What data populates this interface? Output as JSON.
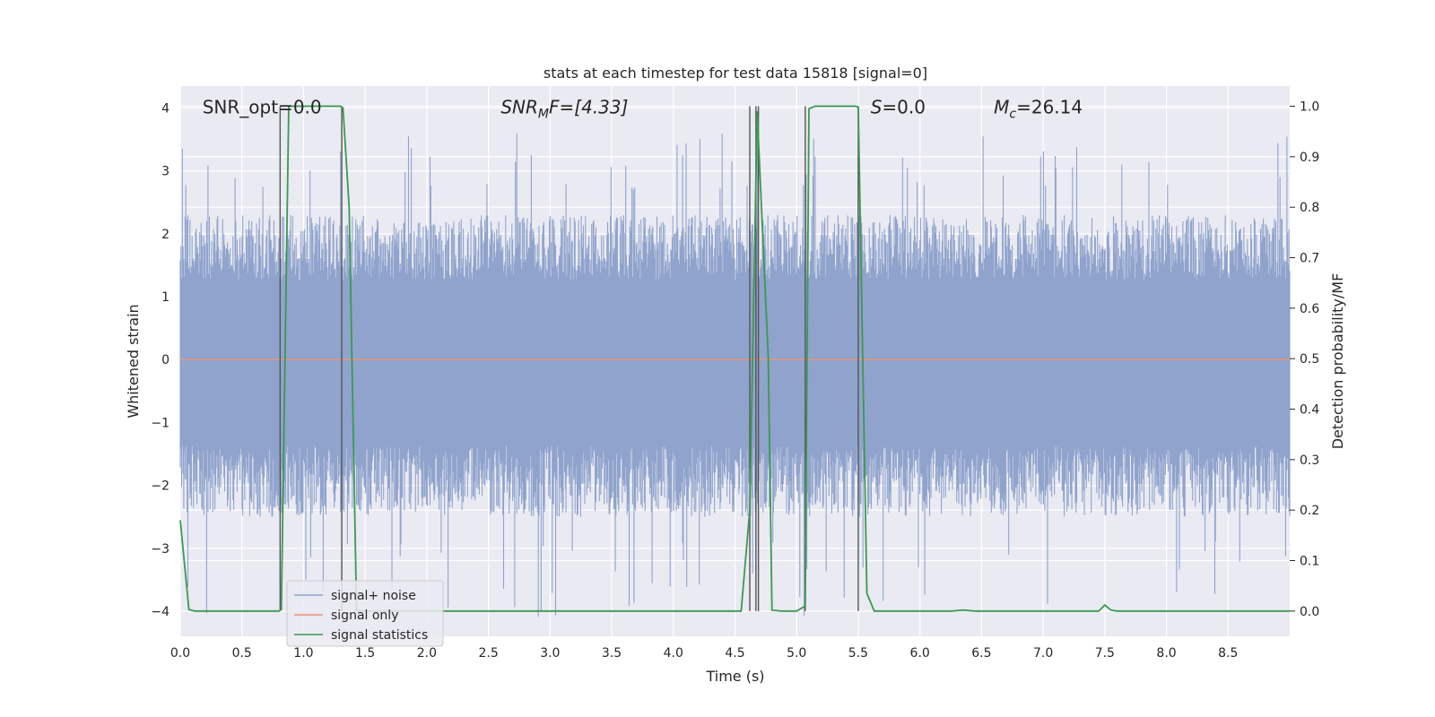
{
  "chart_data": {
    "type": "line",
    "title": "stats at each timestep for test data 15818 [signal=0]",
    "xlabel": "Time (s)",
    "ylabel": "Whitened strain",
    "y2label": "Detection probability/MF",
    "xlim": [
      0.0,
      9.0
    ],
    "ylim": [
      -4.4,
      4.35
    ],
    "y2lim": [
      -0.05,
      1.04
    ],
    "x_ticks": [
      0.0,
      0.5,
      1.0,
      1.5,
      2.0,
      2.5,
      3.0,
      3.5,
      4.0,
      4.5,
      5.0,
      5.5,
      6.0,
      6.5,
      7.0,
      7.5,
      8.0,
      8.5
    ],
    "x_tick_labels": [
      "0.0",
      "0.5",
      "1.0",
      "1.5",
      "2.0",
      "2.5",
      "3.0",
      "3.5",
      "4.0",
      "4.5",
      "5.0",
      "5.5",
      "6.0",
      "6.5",
      "7.0",
      "7.5",
      "8.0",
      "8.5"
    ],
    "y_ticks": [
      4,
      3,
      2,
      1,
      0,
      -1,
      -2,
      -3,
      -4
    ],
    "y_tick_labels": [
      "4",
      "3",
      "2",
      "1",
      "0",
      "−1",
      "−2",
      "−3",
      "−4"
    ],
    "y2_ticks": [
      1.0,
      0.9,
      0.8,
      0.7,
      0.6,
      0.5,
      0.4,
      0.3,
      0.2,
      0.1,
      0.0
    ],
    "y2_tick_labels": [
      "1.0",
      "0.9",
      "0.8",
      "0.7",
      "0.6",
      "0.5",
      "0.4",
      "0.3",
      "0.2",
      "0.1",
      "0.0"
    ],
    "grid": true,
    "legend_position": "lower-left",
    "annotations": [
      {
        "text": "SNR_opt=0.0",
        "x": 0.18,
        "y": 4.0
      },
      {
        "text": "SNR_MF=[4.33]",
        "x": 2.6,
        "y": 4.0
      },
      {
        "text": "S=0.0",
        "x": 5.6,
        "y": 4.0
      },
      {
        "text": "M_c=26.14",
        "x": 6.6,
        "y": 4.0
      }
    ],
    "series": [
      {
        "name": "signal+ noise",
        "color": "#8fa3cc",
        "axis": "left",
        "kind": "noise",
        "envelope": [
          2.3,
          -2.5
        ],
        "extremes": [
          3.6,
          -4.1
        ]
      },
      {
        "name": "signal only",
        "color": "#e8967a",
        "axis": "left",
        "x": [
          0.0,
          9.0
        ],
        "y": [
          0.0,
          0.0
        ]
      },
      {
        "name": "signal statistics",
        "color": "#3a9a4e",
        "axis": "right",
        "x": [
          0.0,
          0.07,
          0.12,
          0.8,
          0.82,
          0.88,
          1.3,
          1.32,
          1.37,
          1.43,
          4.55,
          4.62,
          4.68,
          4.77,
          4.8,
          4.88,
          5.0,
          5.07,
          5.1,
          5.15,
          5.48,
          5.5,
          5.57,
          5.63,
          6.25,
          6.35,
          6.45,
          7.45,
          7.5,
          7.55,
          7.6,
          9.0
        ],
        "y": [
          0.18,
          0.003,
          0.0,
          0.0,
          0.003,
          1.0,
          1.0,
          0.997,
          0.8,
          0.0,
          0.0,
          0.2,
          0.99,
          0.5,
          0.002,
          0.0,
          0.0,
          0.01,
          0.995,
          1.0,
          1.0,
          0.998,
          0.035,
          0.0,
          0.0,
          0.002,
          0.0,
          0.0,
          0.012,
          0.002,
          0.0,
          0.0
        ]
      }
    ],
    "vertical_lines": [
      0.81,
      1.31,
      4.62,
      4.67,
      4.69,
      5.07,
      5.5
    ]
  }
}
